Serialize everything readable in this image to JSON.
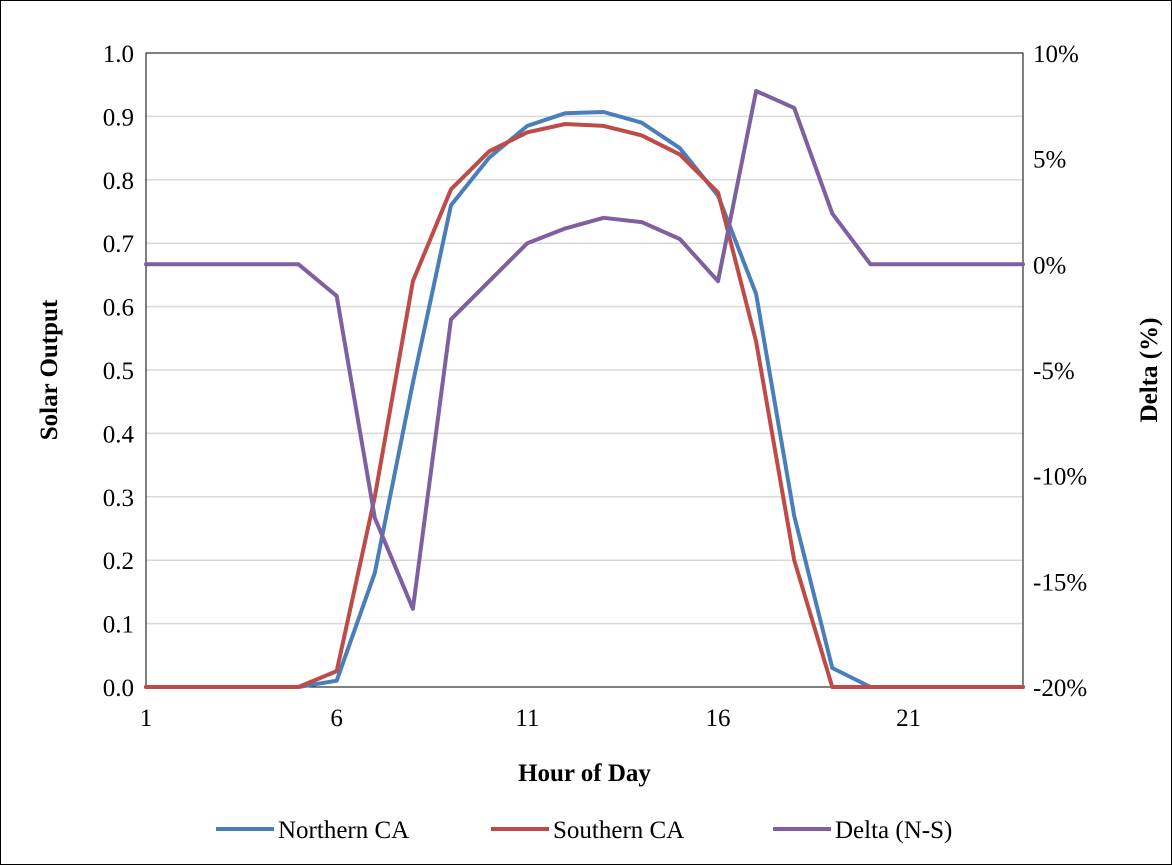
{
  "chart_data": {
    "type": "line",
    "xlabel": "Hour of Day",
    "ylabel": "Solar Output",
    "y2label": "Delta (%)",
    "x": [
      1,
      2,
      3,
      4,
      5,
      6,
      7,
      8,
      9,
      10,
      11,
      12,
      13,
      14,
      15,
      16,
      17,
      18,
      19,
      20,
      21,
      22,
      23,
      24
    ],
    "xticks": [
      1,
      6,
      11,
      16,
      21
    ],
    "xlim": [
      1,
      24
    ],
    "ylim": [
      0,
      1.0
    ],
    "yticks": [
      0.0,
      0.1,
      0.2,
      0.3,
      0.4,
      0.5,
      0.6,
      0.7,
      0.8,
      0.9,
      1.0
    ],
    "y2lim": [
      -20,
      10
    ],
    "y2ticks": [
      -20,
      -15,
      -10,
      -5,
      0,
      5,
      10
    ],
    "grid": "horizontal",
    "legend_position": "bottom",
    "series": [
      {
        "name": "Northern CA",
        "axis": "left",
        "color": "#4a7ebb",
        "values": [
          0,
          0,
          0,
          0,
          0,
          0.01,
          0.18,
          0.48,
          0.76,
          0.835,
          0.885,
          0.905,
          0.907,
          0.89,
          0.85,
          0.775,
          0.62,
          0.27,
          0.03,
          0,
          0,
          0,
          0,
          0
        ]
      },
      {
        "name": "Southern CA",
        "axis": "left",
        "color": "#be4b48",
        "values": [
          0,
          0,
          0,
          0,
          0,
          0.025,
          0.3,
          0.64,
          0.785,
          0.845,
          0.875,
          0.888,
          0.885,
          0.87,
          0.84,
          0.78,
          0.545,
          0.2,
          0,
          0,
          0,
          0,
          0,
          0
        ]
      },
      {
        "name": "Delta (N-S)",
        "axis": "right",
        "color": "#7d60a0",
        "values": [
          0,
          0,
          0,
          0,
          0,
          -1.5,
          -12,
          -16.3,
          -2.6,
          -0.8,
          1,
          1.7,
          2.2,
          2,
          1.2,
          -0.8,
          8.2,
          7.4,
          2.4,
          0,
          0,
          0,
          0,
          0
        ]
      }
    ]
  }
}
